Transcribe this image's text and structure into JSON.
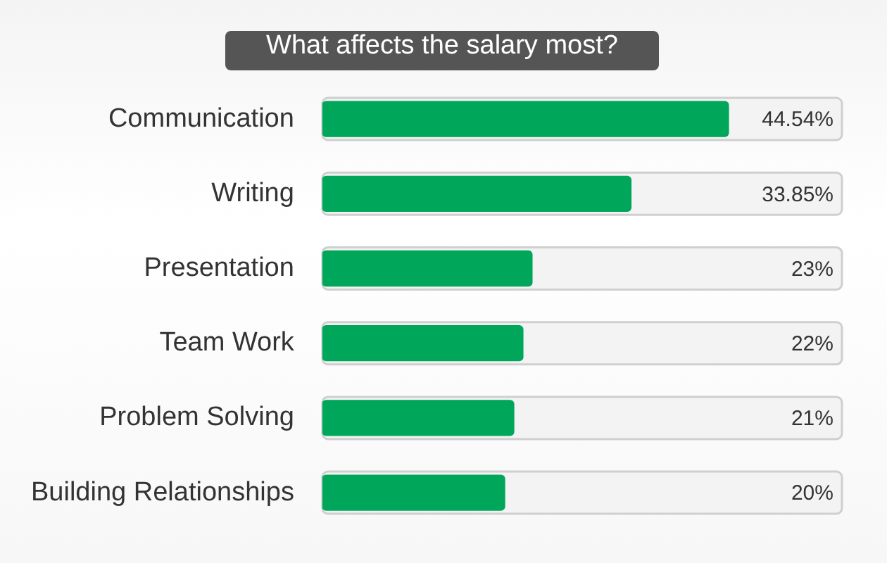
{
  "chart_data": {
    "type": "bar",
    "orientation": "horizontal",
    "title": "What affects the salary most?",
    "categories": [
      "Communication",
      "Writing",
      "Presentation",
      "Team Work",
      "Problem Solving",
      "Building Relationships"
    ],
    "values": [
      44.54,
      33.85,
      23,
      22,
      21,
      20
    ],
    "value_labels": [
      "44.54%",
      "33.85%",
      "23%",
      "22%",
      "21%",
      "20%"
    ],
    "color": "#00a65a",
    "tick_labels": "y",
    "legend": false
  }
}
